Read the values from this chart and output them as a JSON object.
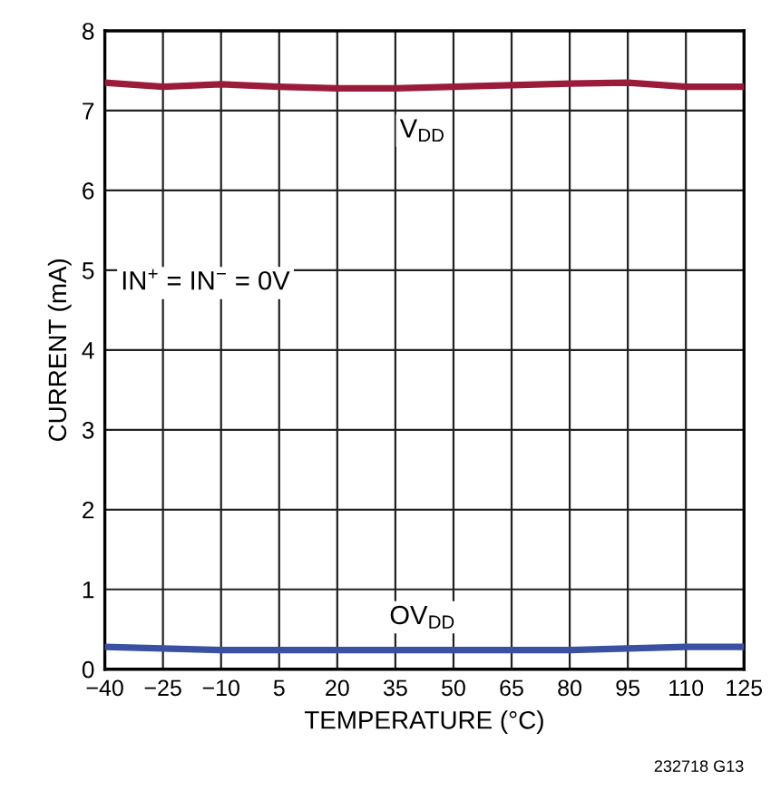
{
  "chart_data": {
    "type": "line",
    "x": [
      -40,
      -25,
      -10,
      5,
      20,
      35,
      50,
      65,
      80,
      95,
      110,
      125
    ],
    "series": [
      {
        "color": "#9b1b3b",
        "values": [
          7.35,
          7.3,
          7.33,
          7.3,
          7.28,
          7.28,
          7.3,
          7.32,
          7.34,
          7.35,
          7.3,
          7.3
        ]
      },
      {
        "color": "#3a50a0",
        "values": [
          0.28,
          0.26,
          0.24,
          0.24,
          0.24,
          0.24,
          0.24,
          0.24,
          0.24,
          0.26,
          0.28,
          0.28
        ]
      }
    ],
    "xlabel": "TEMPERATURE (°C)",
    "ylabel": "CURRENT (mA)",
    "xlim": [
      -40,
      125
    ],
    "ylim": [
      0,
      8
    ],
    "xticks": [
      {
        "value": -40,
        "label": "−40"
      },
      {
        "value": -25,
        "label": "−25"
      },
      {
        "value": -10,
        "label": "−10"
      },
      5,
      20,
      35,
      50,
      65,
      80,
      95,
      110,
      125
    ],
    "yticks": [
      0,
      1,
      2,
      3,
      4,
      5,
      6,
      7,
      8
    ],
    "grid": true,
    "marker": "none",
    "line_style": "solid",
    "annotations": [
      {
        "text": "V$_{DD}$",
        "x": 42,
        "y": 6.75
      },
      {
        "text": "OV$_{DD}$",
        "x": 42,
        "y": 0.65
      },
      "IN$^{+}$ = IN$^{−}$ = 0V",
      "232718 G13"
    ]
  }
}
